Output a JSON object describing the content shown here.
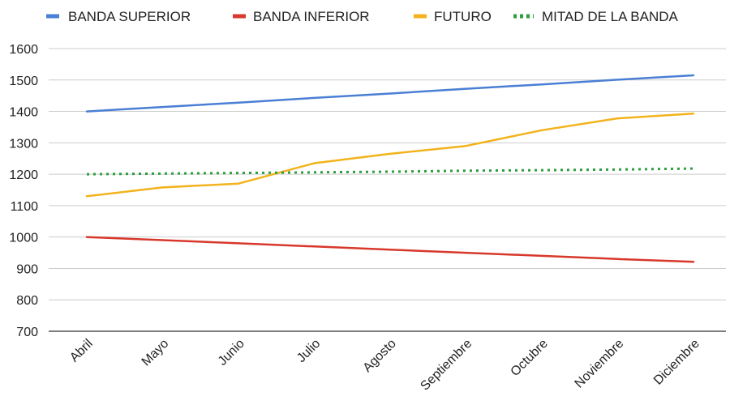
{
  "colors": {
    "upper": "#4a7fd4",
    "lower": "#d8382b",
    "future": "#f2b31c",
    "mid": "#2e9e3f",
    "grid": "#cccccc",
    "axis": "#555555"
  },
  "chart_data": {
    "type": "line",
    "categories": [
      "Abril",
      "Mayo",
      "Junio",
      "Julio",
      "Agosto",
      "Septiembre",
      "Octubre",
      "Noviembre",
      "Diciembre"
    ],
    "ylim": [
      700,
      1600
    ],
    "yticks": [
      "1600",
      "1500",
      "1400",
      "1300",
      "1200",
      "1100",
      "1000",
      "900",
      "800",
      "700"
    ],
    "grid": true,
    "legend_position": "top",
    "series": [
      {
        "name": "BANDA SUPERIOR",
        "style": "solid",
        "values": [
          1400,
          1414,
          1428,
          1443,
          1457,
          1472,
          1486,
          1501,
          1515
        ]
      },
      {
        "name": "BANDA INFERIOR",
        "style": "solid",
        "values": [
          1000,
          990,
          980,
          970,
          960,
          950,
          940,
          930,
          921
        ]
      },
      {
        "name": "FUTURO",
        "style": "solid",
        "values": [
          1130,
          1158,
          1170,
          1235,
          1265,
          1290,
          1340,
          1378,
          1393
        ]
      },
      {
        "name": "MITAD DE LA BANDA",
        "style": "dotted",
        "values": [
          1200,
          1202,
          1204,
          1206,
          1208,
          1211,
          1213,
          1215,
          1218
        ]
      }
    ]
  }
}
